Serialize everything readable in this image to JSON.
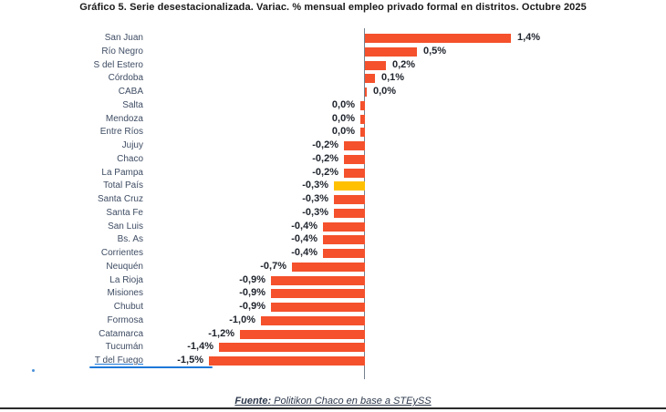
{
  "title": "Gráfico 5. Serie desestacionalizada. Variac. % mensual empleo privado formal en distritos. Octubre 2025",
  "footer": {
    "prefix": "Fuente:",
    "text": " Politikon Chaco en base a STEySS"
  },
  "colors": {
    "bar": "#f4512c",
    "highlight": "#ffc000",
    "value_text": "#20252e",
    "category_text": "#3e4c63",
    "axis": "#74808d",
    "annotation_blue": "#1e78d7",
    "bottom_rule": "#2b2b2b"
  },
  "chart_data": {
    "type": "bar",
    "orientation": "horizontal",
    "title": "Gráfico 5. Serie desestacionalizada. Variac. % mensual empleo privado formal en distritos. Octubre 2025",
    "xlabel": "",
    "ylabel": "",
    "xlim": [
      -1.5,
      1.4
    ],
    "grid": false,
    "legend": "none",
    "highlight_label": "Total País",
    "underlined_label": "T del Fuego",
    "rows": [
      {
        "label": "San Juan",
        "value": 1.4,
        "display": "1,4%"
      },
      {
        "label": "Río Negro",
        "value": 0.5,
        "display": "0,5%"
      },
      {
        "label": "S del Estero",
        "value": 0.2,
        "display": "0,2%"
      },
      {
        "label": "Córdoba",
        "value": 0.1,
        "display": "0,1%"
      },
      {
        "label": "CABA",
        "value": 0.0,
        "display": "0,0%",
        "sign": 1
      },
      {
        "label": "Salta",
        "value": 0.0,
        "display": "0,0%",
        "sign": -1
      },
      {
        "label": "Mendoza",
        "value": 0.0,
        "display": "0,0%",
        "sign": -1
      },
      {
        "label": "Entre Ríos",
        "value": 0.0,
        "display": "0,0%",
        "sign": -1
      },
      {
        "label": "Jujuy",
        "value": -0.2,
        "display": "-0,2%"
      },
      {
        "label": "Chaco",
        "value": -0.2,
        "display": "-0,2%"
      },
      {
        "label": "La Pampa",
        "value": -0.2,
        "display": "-0,2%"
      },
      {
        "label": "Total País",
        "value": -0.3,
        "display": "-0,3%"
      },
      {
        "label": "Santa Cruz",
        "value": -0.3,
        "display": "-0,3%"
      },
      {
        "label": "Santa Fe",
        "value": -0.3,
        "display": "-0,3%"
      },
      {
        "label": "San Luis",
        "value": -0.4,
        "display": "-0,4%"
      },
      {
        "label": "Bs. As",
        "value": -0.4,
        "display": "-0,4%"
      },
      {
        "label": "Corrientes",
        "value": -0.4,
        "display": "-0,4%"
      },
      {
        "label": "Neuquén",
        "value": -0.7,
        "display": "-0,7%"
      },
      {
        "label": "La Rioja",
        "value": -0.9,
        "display": "-0,9%"
      },
      {
        "label": "Misiones",
        "value": -0.9,
        "display": "-0,9%"
      },
      {
        "label": "Chubut",
        "value": -0.9,
        "display": "-0,9%"
      },
      {
        "label": "Formosa",
        "value": -1.0,
        "display": "-1,0%"
      },
      {
        "label": "Catamarca",
        "value": -1.2,
        "display": "-1,2%"
      },
      {
        "label": "Tucumán",
        "value": -1.4,
        "display": "-1,4%"
      },
      {
        "label": "T del Fuego",
        "value": -1.5,
        "display": "-1,5%"
      }
    ]
  }
}
